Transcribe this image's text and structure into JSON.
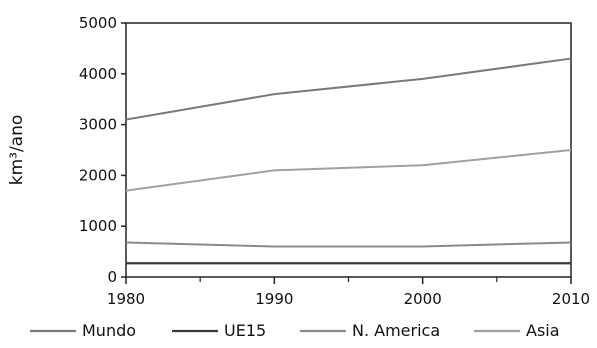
{
  "chart_data": {
    "type": "line",
    "title": "",
    "xlabel": "",
    "ylabel": "km³/ano",
    "x": [
      1980,
      1990,
      2000,
      2010
    ],
    "xticks": [
      "1980",
      "1990",
      "2000",
      "2010"
    ],
    "yticks": [
      "0",
      "1000",
      "2000",
      "3000",
      "4000",
      "5000"
    ],
    "xlim": [
      1980,
      2010
    ],
    "ylim": [
      0,
      5000
    ],
    "grid": false,
    "legend_position": "bottom",
    "series": [
      {
        "name": "Mundo",
        "values": [
          3100,
          3600,
          3900,
          4300
        ],
        "color": "#7a7a7a"
      },
      {
        "name": "UE15",
        "values": [
          270,
          270,
          270,
          270
        ],
        "color": "#3a3a3a"
      },
      {
        "name": "N. America",
        "values": [
          680,
          600,
          600,
          680
        ],
        "color": "#8a8a8a"
      },
      {
        "name": "Asia",
        "values": [
          1700,
          2100,
          2200,
          2500
        ],
        "color": "#a0a0a0"
      }
    ]
  }
}
